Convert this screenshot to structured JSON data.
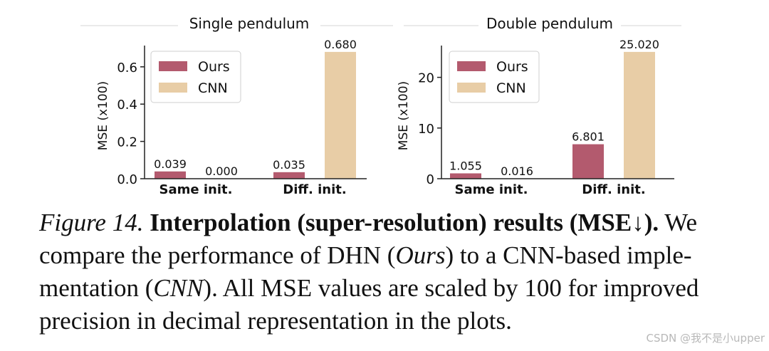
{
  "chart_data": [
    {
      "type": "bar",
      "title": "Single pendulum",
      "xlabel": "",
      "ylabel": "MSE (x100)",
      "categories": [
        "Same init.",
        "Diff. init."
      ],
      "series": [
        {
          "name": "Ours",
          "values": [
            0.039,
            0.035
          ],
          "labels": [
            "0.039",
            "0.035"
          ],
          "color": "#b35a6e"
        },
        {
          "name": "CNN",
          "values": [
            0.0,
            0.68
          ],
          "labels": [
            "0.000",
            "0.680"
          ],
          "color": "#e8cda6"
        }
      ],
      "ylim": [
        0,
        0.714
      ],
      "yticks": [
        0,
        0.2,
        0.4,
        0.6
      ],
      "ytick_labels": [
        "0.0",
        "0.2",
        "0.4",
        "0.6"
      ],
      "legend_position": "top-left",
      "grid": false
    },
    {
      "type": "bar",
      "title": "Double pendulum",
      "xlabel": "",
      "ylabel": "MSE (x100)",
      "categories": [
        "Same init.",
        "Diff. init."
      ],
      "series": [
        {
          "name": "Ours",
          "values": [
            1.055,
            6.801
          ],
          "labels": [
            "1.055",
            "6.801"
          ],
          "color": "#b35a6e"
        },
        {
          "name": "CNN",
          "values": [
            0.016,
            25.02
          ],
          "labels": [
            "0.016",
            "25.020"
          ],
          "color": "#e8cda6"
        }
      ],
      "ylim": [
        0,
        26.27
      ],
      "yticks": [
        0,
        10,
        20
      ],
      "ytick_labels": [
        "0",
        "10",
        "20"
      ],
      "legend_position": "top-left",
      "grid": false
    }
  ],
  "caption": {
    "figure_label": "Figure 14.",
    "bold_title": "Interpolation (super-resolution) results (MSE↓).",
    "text_1": "We compare the performance of DHN (",
    "ours": "Ours",
    "text_2": ") to a CNN-based imple-mentation (",
    "cnn": "CNN",
    "text_3": "). All MSE values are scaled by 100 for improved precision in decimal representation in the plots."
  },
  "watermark": "CSDN @我不是小upper"
}
